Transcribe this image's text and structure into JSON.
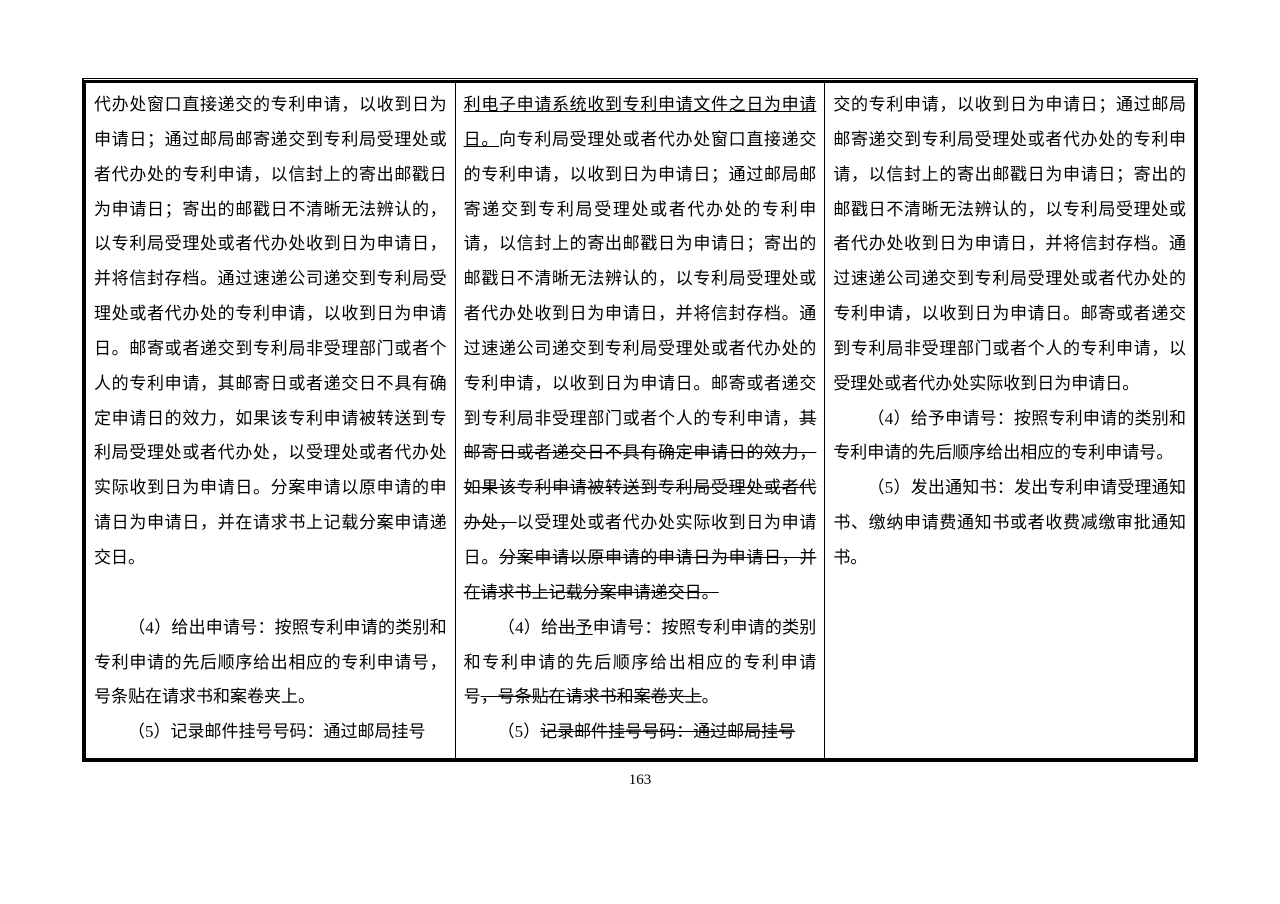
{
  "page_number": "163",
  "columns": {
    "col1": {
      "p1": "代办处窗口直接递交的专利申请，以收到日为申请日；通过邮局邮寄递交到专利局受理处或者代办处的专利申请，以信封上的寄出邮戳日为申请日；寄出的邮戳日不清晰无法辨认的，以专利局受理处或者代办处收到日为申请日，并将信封存档。通过速递公司递交到专利局受理处或者代办处的专利申请，以收到日为申请日。邮寄或者递交到专利局非受理部门或者个人的专利申请，其邮寄日或者递交日不具有确定申请日的效力，如果该专利申请被转送到专利局受理处或者代办处，以受理处或者代办处实际收到日为申请日。分案申请以原申请的申请日为申请日，并在请求书上记载分案申请递交日。",
      "p2": "（4）给出申请号：按照专利申请的类别和专利申请的先后顺序给出相应的专利申请号，号条贴在请求书和案卷夹上。",
      "p3": "（5）记录邮件挂号号码：通过邮局挂号"
    },
    "col2": {
      "seg1_u": "利电子申请系统收到专利申请文件之日为申请日。",
      "seg2": "向专利局受理处或者代办处窗口直接递交的专利申请，以收到日为申请日；通过邮局邮寄递交到专利局受理处或者代办处的专利申请，以信封上的寄出邮戳日为申请日；寄出的邮戳日不清晰无法辨认的，以专利局受理处或者代办处收到日为申请日，并将信封存档。通过速递公司递交到专利局受理处或者代办处的专利申请，以收到日为申请日。邮寄或者递交到专利局非受理部门或者个人的专利申请，",
      "seg3_s": "其邮寄日或者递交日不具有确定申请日的效力，如果该专利申请被转送到专利局受理处或者代办处，",
      "seg4": "以受理处或者代办处实际收到日为申请日。",
      "seg5_s": "分案申请以原申请的申请日为申请日，并在请求书上记载分案申请递交日。",
      "p2_a": "（4）给",
      "p2_b_s": "出",
      "p2_c_u": "予",
      "p2_d": "申请号：按照专利申请的类别和专利申请的先后顺序给出相应的专利申请号",
      "p2_e_s": "，号条贴在请求书和案卷夹上",
      "p2_f": "。",
      "p3_a": "（5）",
      "p3_b_s": "记录邮件挂号号码：通过邮局挂号"
    },
    "col3": {
      "p1": "交的专利申请，以收到日为申请日；通过邮局邮寄递交到专利局受理处或者代办处的专利申请，以信封上的寄出邮戳日为申请日；寄出的邮戳日不清晰无法辨认的，以专利局受理处或者代办处收到日为申请日，并将信封存档。通过速递公司递交到专利局受理处或者代办处的专利申请，以收到日为申请日。邮寄或者递交到专利局非受理部门或者个人的专利申请，以受理处或者代办处实际收到日为申请日。",
      "p2": "（4）给予申请号：按照专利申请的类别和专利申请的先后顺序给出相应的专利申请号。",
      "p3": "（5）发出通知书：发出专利申请受理通知书、缴纳申请费通知书或者收费减缴审批通知书。"
    }
  }
}
